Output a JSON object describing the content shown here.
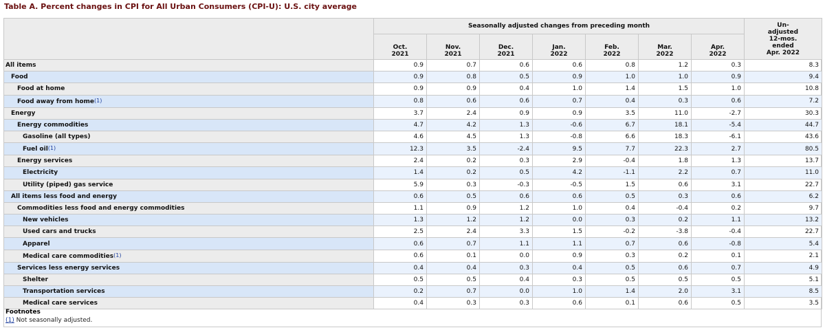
{
  "table": {
    "caption": "Table A. Percent changes in CPI for All Urban Consumers (CPI-U): U.S. city average",
    "group_header": "Seasonally adjusted changes from preceding month",
    "unadjusted_header": [
      "Un-",
      "adjusted",
      "12-mos.",
      "ended",
      "Apr. 2022"
    ],
    "columns": [
      {
        "month": "Oct.",
        "year": "2021"
      },
      {
        "month": "Nov.",
        "year": "2021"
      },
      {
        "month": "Dec.",
        "year": "2021"
      },
      {
        "month": "Jan.",
        "year": "2022"
      },
      {
        "month": "Feb.",
        "year": "2022"
      },
      {
        "month": "Mar.",
        "year": "2022"
      },
      {
        "month": "Apr.",
        "year": "2022"
      }
    ],
    "rows": [
      {
        "label": "All items",
        "level": 0,
        "footnote": "",
        "values": [
          "0.9",
          "0.7",
          "0.6",
          "0.6",
          "0.8",
          "1.2",
          "0.3",
          "8.3"
        ]
      },
      {
        "label": "Food",
        "level": 1,
        "footnote": "",
        "values": [
          "0.9",
          "0.8",
          "0.5",
          "0.9",
          "1.0",
          "1.0",
          "0.9",
          "9.4"
        ]
      },
      {
        "label": "Food at home",
        "level": 2,
        "footnote": "",
        "values": [
          "0.9",
          "0.9",
          "0.4",
          "1.0",
          "1.4",
          "1.5",
          "1.0",
          "10.8"
        ]
      },
      {
        "label": "Food away from home",
        "level": 2,
        "footnote": "(1)",
        "values": [
          "0.8",
          "0.6",
          "0.6",
          "0.7",
          "0.4",
          "0.3",
          "0.6",
          "7.2"
        ]
      },
      {
        "label": "Energy",
        "level": 1,
        "footnote": "",
        "values": [
          "3.7",
          "2.4",
          "0.9",
          "0.9",
          "3.5",
          "11.0",
          "-2.7",
          "30.3"
        ]
      },
      {
        "label": "Energy commodities",
        "level": 2,
        "footnote": "",
        "values": [
          "4.7",
          "4.2",
          "1.3",
          "-0.6",
          "6.7",
          "18.1",
          "-5.4",
          "44.7"
        ]
      },
      {
        "label": "Gasoline (all types)",
        "level": 3,
        "footnote": "",
        "values": [
          "4.6",
          "4.5",
          "1.3",
          "-0.8",
          "6.6",
          "18.3",
          "-6.1",
          "43.6"
        ]
      },
      {
        "label": "Fuel oil",
        "level": 3,
        "footnote": "(1)",
        "values": [
          "12.3",
          "3.5",
          "-2.4",
          "9.5",
          "7.7",
          "22.3",
          "2.7",
          "80.5"
        ]
      },
      {
        "label": "Energy services",
        "level": 2,
        "footnote": "",
        "values": [
          "2.4",
          "0.2",
          "0.3",
          "2.9",
          "-0.4",
          "1.8",
          "1.3",
          "13.7"
        ]
      },
      {
        "label": "Electricity",
        "level": 3,
        "footnote": "",
        "values": [
          "1.4",
          "0.2",
          "0.5",
          "4.2",
          "-1.1",
          "2.2",
          "0.7",
          "11.0"
        ]
      },
      {
        "label": "Utility (piped) gas service",
        "level": 3,
        "footnote": "",
        "values": [
          "5.9",
          "0.3",
          "-0.3",
          "-0.5",
          "1.5",
          "0.6",
          "3.1",
          "22.7"
        ]
      },
      {
        "label": "All items less food and energy",
        "level": 1,
        "footnote": "",
        "values": [
          "0.6",
          "0.5",
          "0.6",
          "0.6",
          "0.5",
          "0.3",
          "0.6",
          "6.2"
        ]
      },
      {
        "label": "Commodities less food and energy commodities",
        "level": 2,
        "footnote": "",
        "values": [
          "1.1",
          "0.9",
          "1.2",
          "1.0",
          "0.4",
          "-0.4",
          "0.2",
          "9.7"
        ]
      },
      {
        "label": "New vehicles",
        "level": 3,
        "footnote": "",
        "values": [
          "1.3",
          "1.2",
          "1.2",
          "0.0",
          "0.3",
          "0.2",
          "1.1",
          "13.2"
        ]
      },
      {
        "label": "Used cars and trucks",
        "level": 3,
        "footnote": "",
        "values": [
          "2.5",
          "2.4",
          "3.3",
          "1.5",
          "-0.2",
          "-3.8",
          "-0.4",
          "22.7"
        ]
      },
      {
        "label": "Apparel",
        "level": 3,
        "footnote": "",
        "values": [
          "0.6",
          "0.7",
          "1.1",
          "1.1",
          "0.7",
          "0.6",
          "-0.8",
          "5.4"
        ]
      },
      {
        "label": "Medical care commodities",
        "level": 3,
        "footnote": "(1)",
        "values": [
          "0.6",
          "0.1",
          "0.0",
          "0.9",
          "0.3",
          "0.2",
          "0.1",
          "2.1"
        ]
      },
      {
        "label": "Services less energy services",
        "level": 2,
        "footnote": "",
        "values": [
          "0.4",
          "0.4",
          "0.3",
          "0.4",
          "0.5",
          "0.6",
          "0.7",
          "4.9"
        ]
      },
      {
        "label": "Shelter",
        "level": 3,
        "footnote": "",
        "values": [
          "0.5",
          "0.5",
          "0.4",
          "0.3",
          "0.5",
          "0.5",
          "0.5",
          "5.1"
        ]
      },
      {
        "label": "Transportation services",
        "level": 3,
        "footnote": "",
        "values": [
          "0.2",
          "0.7",
          "0.0",
          "1.0",
          "1.4",
          "2.0",
          "3.1",
          "8.5"
        ]
      },
      {
        "label": "Medical care services",
        "level": 3,
        "footnote": "",
        "values": [
          "0.4",
          "0.3",
          "0.3",
          "0.6",
          "0.1",
          "0.6",
          "0.5",
          "3.5"
        ]
      }
    ]
  },
  "footnotes": {
    "title": "Footnotes",
    "items": [
      {
        "ref": "(1)",
        "text": " Not seasonally adjusted."
      }
    ]
  },
  "colors": {
    "caption": "#6a1010",
    "header_bg": "#ececec",
    "alt_row_bg": "#eaf2fd",
    "alt_label_bg": "#d8e6f8",
    "footnote_link": "#1a3c9c",
    "border": "#c8c8c8"
  }
}
